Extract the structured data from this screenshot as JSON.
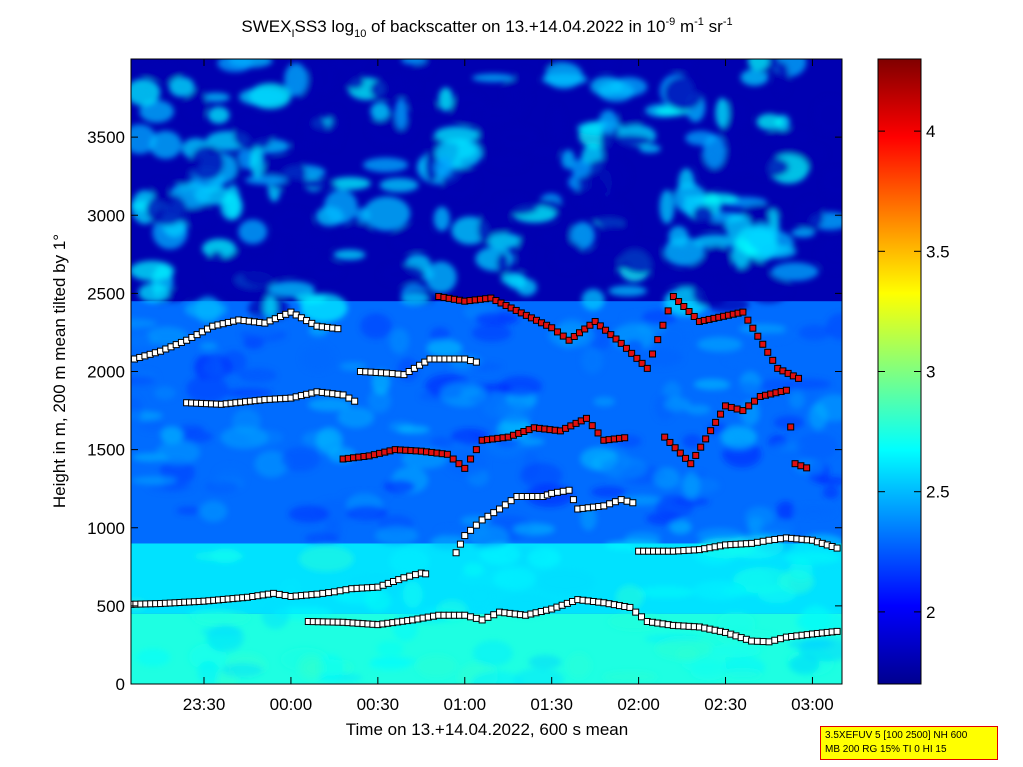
{
  "chart_data": {
    "type": "heatmap",
    "title_parts": {
      "a": "SWEX",
      "a_sub": "I",
      "b": "SS3 log",
      "b_sub": "10",
      "c": " of backscatter on 13.+14.04.2022 in 10",
      "c_sup": "-9",
      "d": " m",
      "d_sup": "-1",
      "e": " sr",
      "e_sup": "-1"
    },
    "xlabel": "Time on 13.+14.04.2022, 600 s mean",
    "ylabel": "Height in m, 200 m mean tilted by 1°",
    "x_range": [
      "23:05",
      "03:10"
    ],
    "xlim_hours": [
      23.08,
      27.17
    ],
    "x_ticks": [
      {
        "label": "23:30",
        "h": 23.5
      },
      {
        "label": "00:00",
        "h": 24.0
      },
      {
        "label": "00:30",
        "h": 24.5
      },
      {
        "label": "01:00",
        "h": 25.0
      },
      {
        "label": "01:30",
        "h": 25.5
      },
      {
        "label": "02:00",
        "h": 26.0
      },
      {
        "label": "02:30",
        "h": 26.5
      },
      {
        "label": "03:00",
        "h": 27.0
      }
    ],
    "ylim": [
      0,
      4000
    ],
    "y_ticks": [
      0,
      500,
      1000,
      1500,
      2000,
      2500,
      3000,
      3500
    ],
    "colorbar": {
      "range": [
        1.7,
        4.3
      ],
      "ticks": [
        2,
        2.5,
        3,
        3.5,
        4
      ],
      "colormap": "jet",
      "colors": [
        "#00008f",
        "#0000ff",
        "#0080ff",
        "#00ffff",
        "#80ff80",
        "#ffff00",
        "#ff8000",
        "#ff0000",
        "#800000"
      ]
    },
    "backscatter_layers": {
      "surface_layer": {
        "height_m": [
          0,
          450
        ],
        "log10_value": 2.75
      },
      "mixed_layer": {
        "height_m": [
          450,
          900
        ],
        "log10_value": 2.6
      },
      "residual_layer": {
        "height_m": [
          900,
          2450
        ],
        "log10_value": 2.3
      },
      "free_troposphere": {
        "height_m": [
          2450,
          4000
        ],
        "log10_value": 1.8
      }
    },
    "layer_height_series": [
      {
        "marker": "white",
        "points": [
          [
            23.08,
            510
          ],
          [
            23.25,
            515
          ],
          [
            23.5,
            530
          ],
          [
            23.75,
            555
          ],
          [
            23.9,
            580
          ],
          [
            24.0,
            560
          ],
          [
            24.15,
            575
          ],
          [
            24.25,
            590
          ],
          [
            24.35,
            610
          ],
          [
            24.5,
            620
          ],
          [
            24.65,
            680
          ],
          [
            24.75,
            710
          ],
          [
            24.8,
            700
          ]
        ]
      },
      {
        "marker": "white",
        "points": [
          [
            24.1,
            400
          ],
          [
            24.3,
            395
          ],
          [
            24.5,
            380
          ],
          [
            24.7,
            410
          ],
          [
            24.85,
            440
          ],
          [
            25.0,
            440
          ],
          [
            25.1,
            410
          ],
          [
            25.2,
            460
          ],
          [
            25.35,
            440
          ],
          [
            25.5,
            480
          ],
          [
            25.65,
            540
          ],
          [
            25.8,
            520
          ],
          [
            25.95,
            490
          ],
          [
            26.05,
            400
          ],
          [
            26.2,
            375
          ],
          [
            26.35,
            365
          ],
          [
            26.5,
            330
          ],
          [
            26.65,
            275
          ],
          [
            26.75,
            270
          ],
          [
            26.85,
            300
          ],
          [
            27.0,
            320
          ],
          [
            27.17,
            340
          ]
        ]
      },
      {
        "marker": "white",
        "points": [
          [
            26.0,
            850
          ],
          [
            26.2,
            850
          ],
          [
            26.35,
            860
          ],
          [
            26.5,
            890
          ],
          [
            26.65,
            900
          ],
          [
            26.75,
            920
          ],
          [
            26.85,
            935
          ],
          [
            27.0,
            920
          ],
          [
            27.17,
            860
          ]
        ]
      },
      {
        "marker": "white",
        "points": [
          [
            24.95,
            840
          ],
          [
            25.0,
            950
          ],
          [
            25.1,
            1050
          ],
          [
            25.2,
            1120
          ],
          [
            25.3,
            1200
          ],
          [
            25.45,
            1200
          ],
          [
            25.5,
            1220
          ],
          [
            25.6,
            1240
          ],
          [
            25.65,
            1120
          ],
          [
            25.8,
            1140
          ],
          [
            25.9,
            1180
          ],
          [
            26.0,
            1150
          ]
        ]
      },
      {
        "marker": "red",
        "points": [
          [
            24.3,
            1440
          ],
          [
            24.45,
            1460
          ],
          [
            24.6,
            1500
          ],
          [
            24.75,
            1490
          ],
          [
            24.9,
            1470
          ],
          [
            25.0,
            1380
          ],
          [
            25.1,
            1560
          ],
          [
            25.25,
            1580
          ],
          [
            25.4,
            1640
          ],
          [
            25.55,
            1620
          ],
          [
            25.7,
            1700
          ],
          [
            25.8,
            1560
          ],
          [
            25.95,
            1580
          ]
        ]
      },
      {
        "marker": "red",
        "points": [
          [
            26.15,
            1580
          ],
          [
            26.3,
            1410
          ],
          [
            26.5,
            1780
          ],
          [
            26.6,
            1750
          ],
          [
            26.7,
            1840
          ],
          [
            26.85,
            1880
          ],
          [
            26.9,
            1410
          ],
          [
            27.0,
            1370
          ]
        ]
      },
      {
        "marker": "white",
        "points": [
          [
            23.1,
            2080
          ],
          [
            23.25,
            2130
          ],
          [
            23.4,
            2200
          ],
          [
            23.55,
            2290
          ],
          [
            23.7,
            2330
          ],
          [
            23.85,
            2310
          ],
          [
            24.0,
            2380
          ],
          [
            24.15,
            2290
          ],
          [
            24.3,
            2270
          ]
        ]
      },
      {
        "marker": "white",
        "points": [
          [
            24.4,
            2000
          ],
          [
            24.55,
            1990
          ],
          [
            24.65,
            1980
          ],
          [
            24.8,
            2080
          ],
          [
            25.0,
            2080
          ],
          [
            25.1,
            2050
          ]
        ]
      },
      {
        "marker": "red",
        "points": [
          [
            24.85,
            2480
          ],
          [
            25.0,
            2450
          ],
          [
            25.15,
            2470
          ],
          [
            25.5,
            2280
          ],
          [
            25.6,
            2200
          ],
          [
            25.75,
            2320
          ],
          [
            25.9,
            2180
          ],
          [
            26.05,
            2020
          ],
          [
            26.2,
            2480
          ],
          [
            26.35,
            2320
          ],
          [
            26.6,
            2380
          ],
          [
            26.8,
            2020
          ],
          [
            26.95,
            1940
          ]
        ]
      },
      {
        "marker": "white",
        "points": [
          [
            23.4,
            1800
          ],
          [
            23.6,
            1790
          ],
          [
            23.85,
            1820
          ],
          [
            24.0,
            1830
          ],
          [
            24.15,
            1870
          ],
          [
            24.3,
            1850
          ],
          [
            24.4,
            1790
          ]
        ]
      }
    ]
  },
  "info_box": {
    "line1": "3.5XEFUV 5 [100 2500] NH 600",
    "line2": "MB 200 RG 15% TI 0 HI 15",
    "background": "#ffff00",
    "border": "#e00000"
  }
}
